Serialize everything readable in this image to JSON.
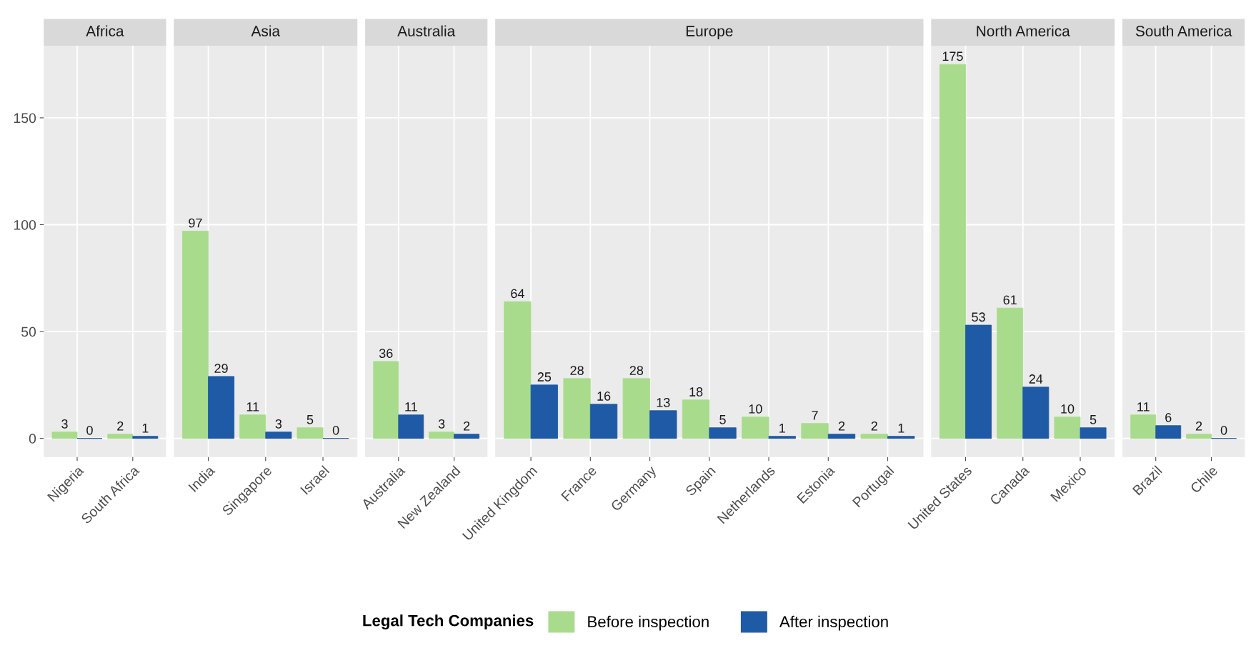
{
  "chart_data": [
    {
      "type": "bar",
      "title": "Africa",
      "categories": [
        "Nigeria",
        "South Africa"
      ],
      "series": [
        {
          "name": "Before inspection",
          "color": "#a8dc8c",
          "values": [
            3,
            2
          ]
        },
        {
          "name": "After inspection",
          "color": "#1f5aa6",
          "values": [
            0,
            1
          ]
        }
      ],
      "ylim": [
        -8.75,
        183.75
      ],
      "yticks": [
        0,
        50,
        100,
        150
      ],
      "grid": true,
      "data_labels": true,
      "legend": "bottom",
      "legend_title": "Legal Tech Companies"
    },
    {
      "type": "bar",
      "title": "Asia",
      "categories": [
        "India",
        "Singapore",
        "Israel"
      ],
      "series": [
        {
          "color": "#a8dc8c",
          "values": [
            97,
            11,
            5
          ]
        },
        {
          "color": "#1f5aa6",
          "values": [
            29,
            3,
            0
          ]
        }
      ],
      "ylim": [
        -8.75,
        183.75
      ],
      "yticks": [
        0,
        50,
        100,
        150
      ],
      "grid": true,
      "data_labels": true,
      "tick_labels": "x"
    },
    {
      "type": "bar",
      "title": "Australia",
      "categories": [
        "Australia",
        "New Zealand"
      ],
      "series": [
        {
          "color": "#a8dc8c",
          "values": [
            36,
            3
          ]
        },
        {
          "color": "#1f5aa6",
          "values": [
            11,
            2
          ]
        }
      ],
      "ylim": [
        -8.75,
        183.75
      ],
      "yticks": [
        0,
        50,
        100,
        150
      ],
      "grid": true,
      "data_labels": true,
      "tick_labels": "x"
    },
    {
      "type": "bar",
      "title": "Europe",
      "categories": [
        "United Kingdom",
        "France",
        "Germany",
        "Spain",
        "Netherlands",
        "Estonia",
        "Portugal"
      ],
      "series": [
        {
          "color": "#a8dc8c",
          "values": [
            64,
            28,
            28,
            18,
            10,
            7,
            2
          ]
        },
        {
          "color": "#1f5aa6",
          "values": [
            25,
            16,
            13,
            5,
            1,
            2,
            1
          ]
        }
      ],
      "ylim": [
        -8.75,
        183.75
      ],
      "yticks": [
        0,
        50,
        100,
        150
      ],
      "grid": true,
      "data_labels": true,
      "tick_labels": "x"
    },
    {
      "type": "bar",
      "title": "North America",
      "categories": [
        "United States",
        "Canada",
        "Mexico"
      ],
      "series": [
        {
          "color": "#a8dc8c",
          "values": [
            175,
            61,
            10
          ]
        },
        {
          "color": "#1f5aa6",
          "values": [
            53,
            24,
            5
          ]
        }
      ],
      "ylim": [
        -8.75,
        183.75
      ],
      "yticks": [
        0,
        50,
        100,
        150
      ],
      "grid": true,
      "data_labels": true,
      "tick_labels": "x"
    },
    {
      "type": "bar",
      "title": "South America",
      "categories": [
        "Brazil",
        "Chile"
      ],
      "series": [
        {
          "color": "#a8dc8c",
          "values": [
            11,
            2
          ]
        },
        {
          "color": "#1f5aa6",
          "values": [
            6,
            0
          ]
        }
      ],
      "ylim": [
        -8.75,
        183.75
      ],
      "yticks": [
        0,
        50,
        100,
        150
      ],
      "grid": true,
      "data_labels": true,
      "tick_labels": "x"
    }
  ]
}
